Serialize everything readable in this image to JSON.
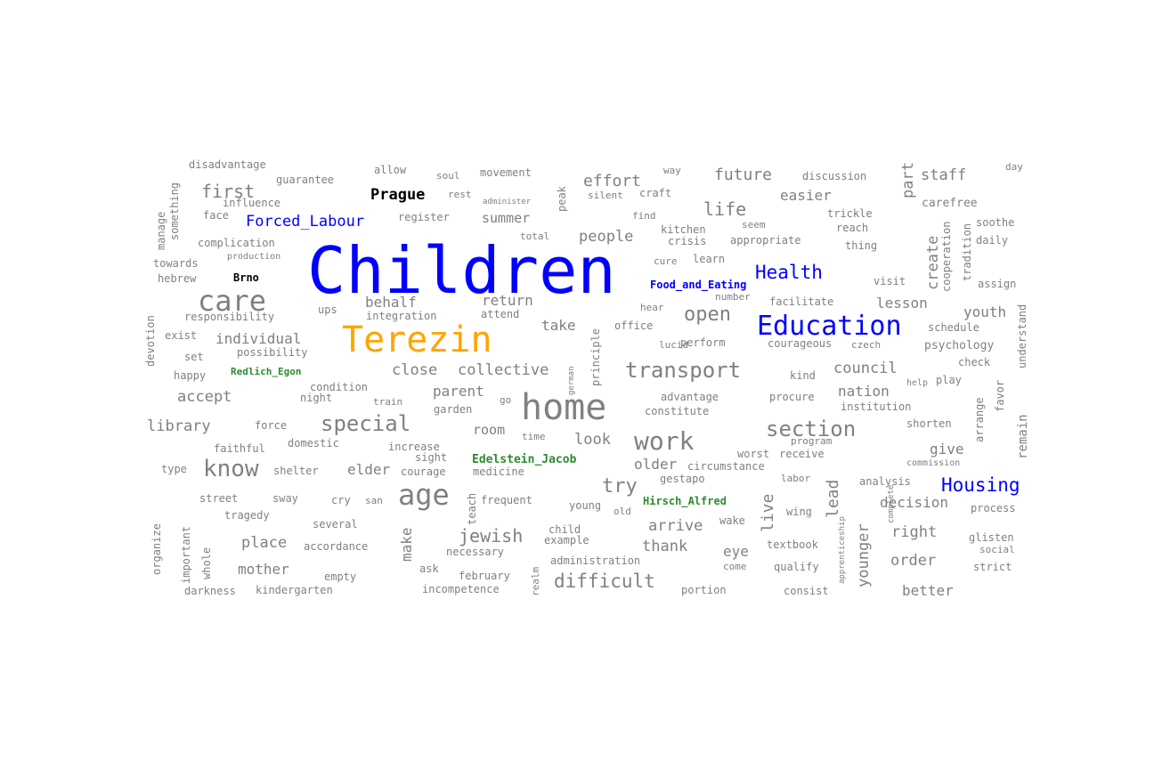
{
  "colors": {
    "default": "#808080",
    "blue": "#0000ff",
    "orange": "#ffa500",
    "green": "#2e8b2e",
    "black": "#000000"
  },
  "words": [
    {
      "text": "Children",
      "color": "blue"
    },
    {
      "text": "Terezin",
      "color": "orange"
    },
    {
      "text": "Education",
      "color": "blue"
    },
    {
      "text": "Health",
      "color": "blue"
    },
    {
      "text": "Housing",
      "color": "blue"
    },
    {
      "text": "Forced_Labour",
      "color": "blue"
    },
    {
      "text": "Food_and_Eating",
      "color": "blue"
    },
    {
      "text": "Prague",
      "color": "black"
    },
    {
      "text": "Brno",
      "color": "black"
    },
    {
      "text": "Redlich_Egon",
      "color": "green"
    },
    {
      "text": "Edelstein_Jacob",
      "color": "green"
    },
    {
      "text": "Hirsch_Alfred",
      "color": "green"
    },
    {
      "text": "home"
    },
    {
      "text": "care"
    },
    {
      "text": "age"
    },
    {
      "text": "work"
    },
    {
      "text": "know"
    },
    {
      "text": "special"
    },
    {
      "text": "transport"
    },
    {
      "text": "section"
    },
    {
      "text": "open"
    },
    {
      "text": "life"
    },
    {
      "text": "first"
    },
    {
      "text": "effort"
    },
    {
      "text": "future"
    },
    {
      "text": "easier"
    },
    {
      "text": "staff"
    },
    {
      "text": "people"
    },
    {
      "text": "summer"
    },
    {
      "text": "behalf"
    },
    {
      "text": "return"
    },
    {
      "text": "individual"
    },
    {
      "text": "take"
    },
    {
      "text": "close"
    },
    {
      "text": "collective"
    },
    {
      "text": "council"
    },
    {
      "text": "lesson"
    },
    {
      "text": "youth"
    },
    {
      "text": "nation"
    },
    {
      "text": "accept"
    },
    {
      "text": "parent"
    },
    {
      "text": "library"
    },
    {
      "text": "room"
    },
    {
      "text": "look"
    },
    {
      "text": "elder"
    },
    {
      "text": "older"
    },
    {
      "text": "try"
    },
    {
      "text": "jewish"
    },
    {
      "text": "arrive"
    },
    {
      "text": "thank"
    },
    {
      "text": "eye"
    },
    {
      "text": "difficult"
    },
    {
      "text": "place"
    },
    {
      "text": "mother"
    },
    {
      "text": "decision"
    },
    {
      "text": "right"
    },
    {
      "text": "order"
    },
    {
      "text": "better"
    },
    {
      "text": "give"
    },
    {
      "text": "psychology"
    },
    {
      "text": "disadvantage"
    },
    {
      "text": "guarantee"
    },
    {
      "text": "allow"
    },
    {
      "text": "soul"
    },
    {
      "text": "movement"
    },
    {
      "text": "way"
    },
    {
      "text": "discussion"
    },
    {
      "text": "day"
    },
    {
      "text": "influence"
    },
    {
      "text": "rest"
    },
    {
      "text": "administer"
    },
    {
      "text": "silent"
    },
    {
      "text": "craft"
    },
    {
      "text": "carefree"
    },
    {
      "text": "face"
    },
    {
      "text": "register"
    },
    {
      "text": "find"
    },
    {
      "text": "seem"
    },
    {
      "text": "trickle"
    },
    {
      "text": "soothe"
    },
    {
      "text": "complication"
    },
    {
      "text": "total"
    },
    {
      "text": "kitchen"
    },
    {
      "text": "reach"
    },
    {
      "text": "crisis"
    },
    {
      "text": "appropriate"
    },
    {
      "text": "thing"
    },
    {
      "text": "daily"
    },
    {
      "text": "towards"
    },
    {
      "text": "production"
    },
    {
      "text": "cure"
    },
    {
      "text": "learn"
    },
    {
      "text": "hebrew"
    },
    {
      "text": "visit"
    },
    {
      "text": "assign"
    },
    {
      "text": "number"
    },
    {
      "text": "facilitate"
    },
    {
      "text": "hear"
    },
    {
      "text": "responsibility"
    },
    {
      "text": "ups"
    },
    {
      "text": "integration"
    },
    {
      "text": "attend"
    },
    {
      "text": "office"
    },
    {
      "text": "schedule"
    },
    {
      "text": "exist"
    },
    {
      "text": "lucid"
    },
    {
      "text": "perform"
    },
    {
      "text": "courageous"
    },
    {
      "text": "czech"
    },
    {
      "text": "set"
    },
    {
      "text": "possibility"
    },
    {
      "text": "check"
    },
    {
      "text": "happy"
    },
    {
      "text": "kind"
    },
    {
      "text": "help"
    },
    {
      "text": "play"
    },
    {
      "text": "condition"
    },
    {
      "text": "night"
    },
    {
      "text": "train"
    },
    {
      "text": "go"
    },
    {
      "text": "advantage"
    },
    {
      "text": "procure"
    },
    {
      "text": "constitute"
    },
    {
      "text": "institution"
    },
    {
      "text": "garden"
    },
    {
      "text": "force"
    },
    {
      "text": "time"
    },
    {
      "text": "shorten"
    },
    {
      "text": "faithful"
    },
    {
      "text": "domestic"
    },
    {
      "text": "increase"
    },
    {
      "text": "program"
    },
    {
      "text": "sight"
    },
    {
      "text": "worst"
    },
    {
      "text": "receive"
    },
    {
      "text": "type"
    },
    {
      "text": "shelter"
    },
    {
      "text": "courage"
    },
    {
      "text": "medicine"
    },
    {
      "text": "circumstance"
    },
    {
      "text": "commission"
    },
    {
      "text": "gestapo"
    },
    {
      "text": "labor"
    },
    {
      "text": "analysis"
    },
    {
      "text": "street"
    },
    {
      "text": "sway"
    },
    {
      "text": "cry"
    },
    {
      "text": "san"
    },
    {
      "text": "frequent"
    },
    {
      "text": "young"
    },
    {
      "text": "old"
    },
    {
      "text": "process"
    },
    {
      "text": "tragedy"
    },
    {
      "text": "wing"
    },
    {
      "text": "wake"
    },
    {
      "text": "several"
    },
    {
      "text": "child"
    },
    {
      "text": "example"
    },
    {
      "text": "glisten"
    },
    {
      "text": "social"
    },
    {
      "text": "accordance"
    },
    {
      "text": "necessary"
    },
    {
      "text": "administration"
    },
    {
      "text": "textbook"
    },
    {
      "text": "strict"
    },
    {
      "text": "empty"
    },
    {
      "text": "ask"
    },
    {
      "text": "february"
    },
    {
      "text": "come"
    },
    {
      "text": "qualify"
    },
    {
      "text": "darkness"
    },
    {
      "text": "kindergarten"
    },
    {
      "text": "incompetence"
    },
    {
      "text": "portion"
    },
    {
      "text": "consist"
    },
    {
      "text": "devotion"
    },
    {
      "text": "manage"
    },
    {
      "text": "something"
    },
    {
      "text": "peak"
    },
    {
      "text": "part"
    },
    {
      "text": "create"
    },
    {
      "text": "cooperation"
    },
    {
      "text": "tradition"
    },
    {
      "text": "principle"
    },
    {
      "text": "german"
    },
    {
      "text": "remain"
    },
    {
      "text": "understand"
    },
    {
      "text": "arrange"
    },
    {
      "text": "favor"
    },
    {
      "text": "lead"
    },
    {
      "text": "live"
    },
    {
      "text": "younger"
    },
    {
      "text": "apprenticeship"
    },
    {
      "text": "complete"
    },
    {
      "text": "teach"
    },
    {
      "text": "make"
    },
    {
      "text": "realm"
    },
    {
      "text": "organize"
    },
    {
      "text": "important"
    },
    {
      "text": "whole"
    }
  ]
}
